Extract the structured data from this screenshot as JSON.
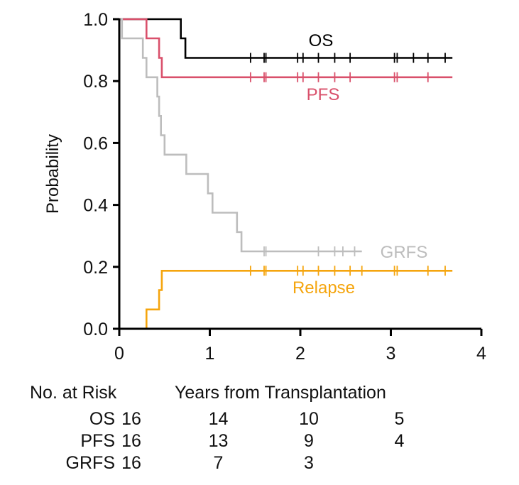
{
  "chart_data": {
    "type": "line",
    "subtype": "kaplan-meier step curves",
    "ylabel": "Probability",
    "xlabel": "Years from Transplantation",
    "xlim": [
      0,
      4
    ],
    "ylim": [
      0,
      1
    ],
    "x_ticks": [
      0,
      1,
      2,
      3,
      4
    ],
    "y_ticks": [
      0.0,
      0.2,
      0.4,
      0.6,
      0.8,
      1.0
    ],
    "x_tick_labels": [
      "0",
      "1",
      "2",
      "3",
      "4"
    ],
    "y_tick_labels": [
      "0.0",
      "0.2",
      "0.4",
      "0.6",
      "0.8",
      "1.0"
    ],
    "grid": false,
    "series": [
      {
        "name": "OS",
        "color": "#000000",
        "steps": [
          [
            0,
            1.0
          ],
          [
            0.68,
            0.938
          ],
          [
            0.73,
            0.875
          ],
          [
            3.68,
            0.875
          ]
        ],
        "censor_x": [
          1.45,
          1.6,
          1.62,
          1.97,
          2.03,
          2.2,
          2.38,
          2.55,
          3.04,
          3.07,
          3.25,
          3.41,
          3.6
        ]
      },
      {
        "name": "PFS",
        "color": "#d9506b",
        "steps": [
          [
            0,
            1.0
          ],
          [
            0.3,
            0.938
          ],
          [
            0.44,
            0.875
          ],
          [
            0.47,
            0.8125
          ],
          [
            3.68,
            0.8125
          ]
        ],
        "censor_x": [
          1.45,
          1.6,
          1.62,
          1.97,
          2.03,
          2.2,
          2.38,
          2.55,
          3.04,
          3.07,
          3.41
        ]
      },
      {
        "name": "GRFS",
        "color": "#bdbdbd",
        "steps": [
          [
            0,
            1.0
          ],
          [
            0.03,
            0.938
          ],
          [
            0.26,
            0.875
          ],
          [
            0.3,
            0.8125
          ],
          [
            0.42,
            0.75
          ],
          [
            0.44,
            0.6875
          ],
          [
            0.46,
            0.625
          ],
          [
            0.5,
            0.5625
          ],
          [
            0.74,
            0.5
          ],
          [
            0.98,
            0.4375
          ],
          [
            1.03,
            0.375
          ],
          [
            1.3,
            0.3125
          ],
          [
            1.35,
            0.25
          ],
          [
            2.68,
            0.25
          ]
        ],
        "censor_x": [
          1.6,
          1.62,
          2.2,
          2.38,
          2.47,
          2.6
        ]
      },
      {
        "name": "Relapse",
        "color": "#f5a50e",
        "steps": [
          [
            0,
            0.0
          ],
          [
            0.3,
            0.0625
          ],
          [
            0.44,
            0.125
          ],
          [
            0.47,
            0.1875
          ],
          [
            3.68,
            0.1875
          ]
        ],
        "censor_x": [
          1.45,
          1.6,
          1.62,
          1.97,
          2.03,
          2.2,
          2.38,
          2.55,
          2.68,
          3.04,
          3.07,
          3.41,
          3.6
        ]
      }
    ],
    "risk_table": {
      "title": "No. at Risk",
      "times": [
        0,
        1,
        2,
        3
      ],
      "rows": [
        {
          "label": "OS",
          "counts": [
            "16",
            "14",
            "10",
            "5"
          ]
        },
        {
          "label": "PFS",
          "counts": [
            "16",
            "13",
            "9",
            "4"
          ]
        },
        {
          "label": "GRFS",
          "counts": [
            "16",
            "7",
            "3",
            ""
          ]
        }
      ]
    }
  }
}
